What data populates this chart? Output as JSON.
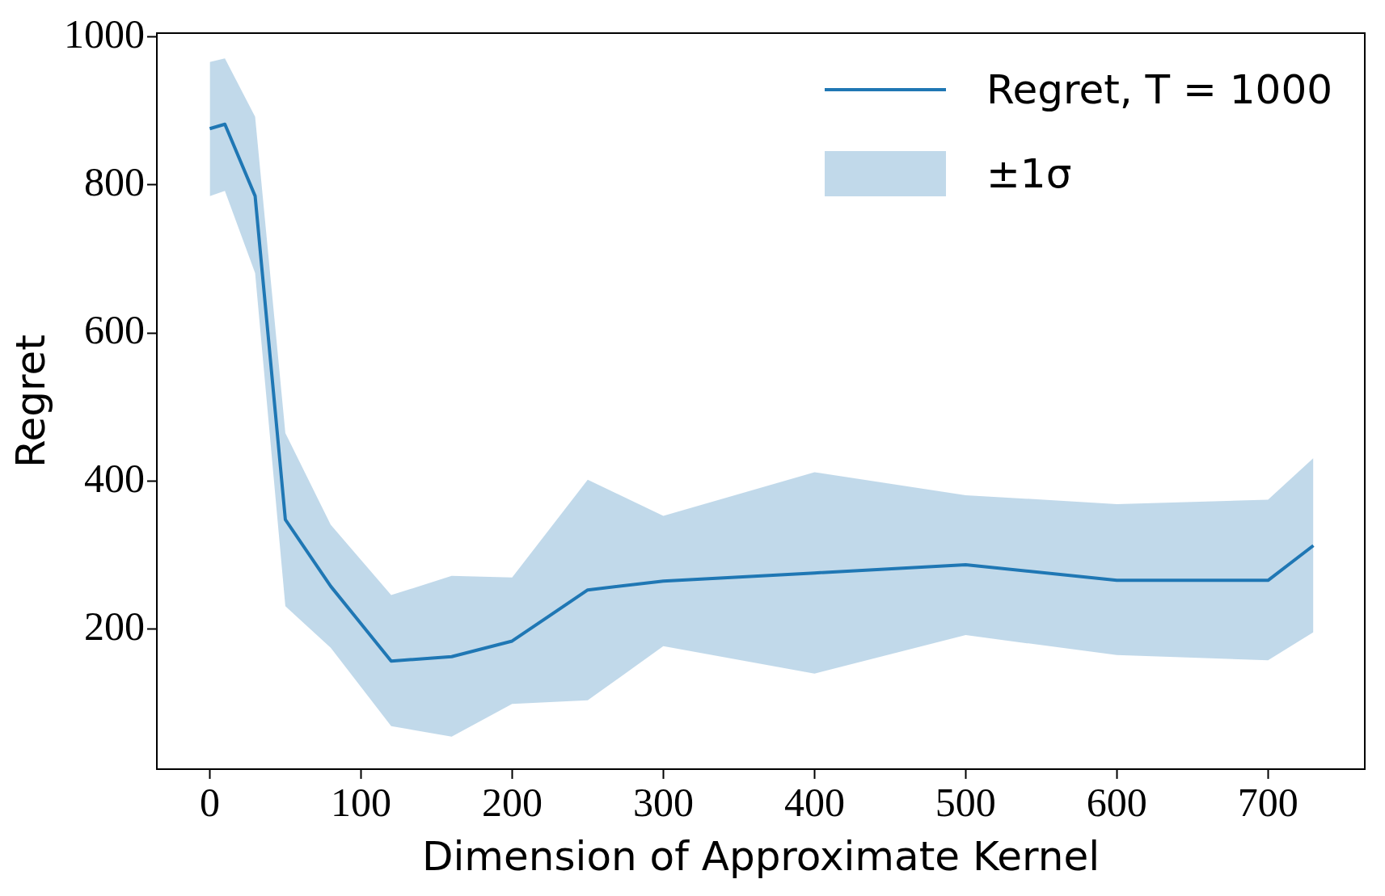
{
  "chart_data": {
    "type": "line",
    "xlabel": "Dimension of Approximate Kernel",
    "ylabel": "Regret",
    "x": [
      0,
      10,
      30,
      50,
      80,
      120,
      160,
      200,
      250,
      300,
      400,
      500,
      600,
      700,
      730
    ],
    "series": [
      {
        "name": "Regret, T = 1000",
        "color": "#1f77b4",
        "values": [
          876,
          882,
          785,
          348,
          258,
          157,
          163,
          184,
          253,
          265,
          276,
          287,
          266,
          266,
          313
        ],
        "lower": [
          785,
          792,
          681,
          231,
          175,
          69,
          55,
          99,
          104,
          177,
          140,
          192,
          165,
          158,
          196
        ],
        "upper": [
          966,
          971,
          892,
          465,
          341,
          246,
          272,
          270,
          402,
          353,
          412,
          381,
          369,
          375,
          431
        ]
      }
    ],
    "annotations": [
      "±1σ"
    ],
    "xlim": [
      -35,
      764
    ],
    "ylim": [
      11,
      1005
    ],
    "xticks": [
      0,
      100,
      200,
      300,
      400,
      500,
      600,
      700
    ],
    "yticks": [
      200,
      400,
      600,
      800,
      1000
    ],
    "grid": false,
    "legend": "top right",
    "marker": "none",
    "line_style": "solid"
  }
}
